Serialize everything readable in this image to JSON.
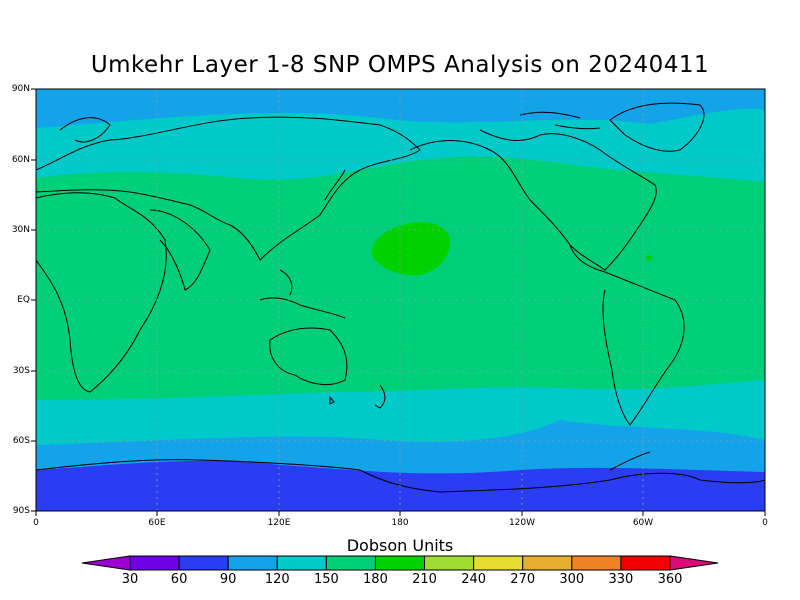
{
  "title": "Umkehr Layer 1-8 SNP OMPS Analysis on 20240411",
  "colorbar": {
    "title": "Dobson Units",
    "labels": [
      "30",
      "60",
      "90",
      "120",
      "150",
      "180",
      "210",
      "240",
      "270",
      "300",
      "330",
      "360"
    ],
    "colors": [
      "#9b00d0",
      "#6e00e4",
      "#2a3df2",
      "#14a2e8",
      "#00c9c9",
      "#00cf7a",
      "#00d200",
      "#a0dd32",
      "#e6dc32",
      "#e6af2d",
      "#f08228",
      "#f00000",
      "#dc0a78"
    ]
  },
  "axes": {
    "y_ticks": [
      "90N",
      "60N",
      "30N",
      "EQ",
      "30S",
      "60S",
      "90S"
    ],
    "x_ticks": [
      "0",
      "60E",
      "120E",
      "180",
      "120W",
      "60W",
      "0"
    ]
  },
  "map": {
    "projection": "cylindrical equidistant, centered on 180",
    "gridlines": "dashed"
  }
}
